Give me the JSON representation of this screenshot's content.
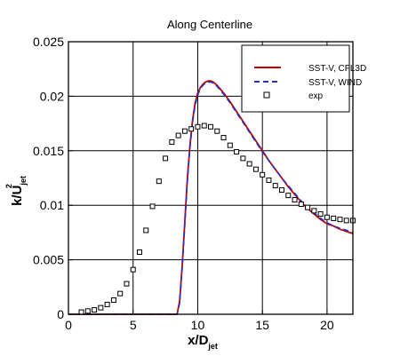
{
  "chart_data": {
    "type": "line",
    "title": "Along Centerline",
    "xlabel": {
      "main": "x/D",
      "sub": "jet"
    },
    "ylabel": {
      "main": "k/U",
      "sub": "jet",
      "sup": "2"
    },
    "xlim": [
      0,
      22
    ],
    "ylim": [
      0,
      0.025
    ],
    "xticks": [
      0,
      5,
      10,
      15,
      20
    ],
    "xtick_labels": [
      "0",
      "5",
      "10",
      "15",
      "20"
    ],
    "yticks": [
      0,
      0.005,
      0.01,
      0.015,
      0.02,
      0.025
    ],
    "ytick_labels": [
      "0",
      "0.005",
      "0.01",
      "0.015",
      "0.02",
      "0.025"
    ],
    "grid": true,
    "legend_position": "top-right",
    "series": [
      {
        "name": "SST-V, CFL3D",
        "color": "#c00000",
        "style": "solid",
        "x": [
          0,
          8.4,
          8.6,
          8.8,
          9.0,
          9.2,
          9.4,
          9.6,
          9.8,
          10.0,
          10.2,
          10.4,
          10.6,
          10.8,
          11.0,
          11.2,
          11.5,
          12,
          12.5,
          13,
          13.5,
          14,
          14.5,
          15,
          15.5,
          16,
          16.5,
          17,
          17.5,
          18,
          18.5,
          19,
          19.5,
          20,
          20.5,
          21,
          21.5,
          22
        ],
        "y": [
          0,
          0,
          0.0012,
          0.0045,
          0.0085,
          0.0125,
          0.0155,
          0.0178,
          0.0194,
          0.0203,
          0.0208,
          0.0211,
          0.0213,
          0.0214,
          0.0214,
          0.0213,
          0.021,
          0.0203,
          0.0195,
          0.0186,
          0.0177,
          0.0168,
          0.0159,
          0.015,
          0.0141,
          0.0133,
          0.0125,
          0.0117,
          0.011,
          0.0103,
          0.0097,
          0.0092,
          0.0087,
          0.0083,
          0.0081,
          0.0078,
          0.0076,
          0.0074
        ]
      },
      {
        "name": "SST-V, WIND",
        "color": "#2233cc",
        "style": "dashed",
        "x": [
          0,
          8.4,
          8.6,
          8.8,
          9.0,
          9.2,
          9.4,
          9.6,
          9.8,
          10.0,
          10.2,
          10.4,
          10.6,
          10.8,
          11.0,
          11.2,
          11.5,
          12,
          12.5,
          13,
          13.5,
          14,
          14.5,
          15,
          15.5,
          16,
          16.5,
          17,
          17.5,
          18,
          18.5,
          19,
          19.5,
          20,
          20.5,
          21,
          21.5,
          22
        ],
        "y": [
          0,
          0,
          0.001,
          0.0042,
          0.0082,
          0.0122,
          0.0153,
          0.0176,
          0.0192,
          0.0201,
          0.0207,
          0.021,
          0.0212,
          0.0213,
          0.0213,
          0.0212,
          0.0209,
          0.0202,
          0.0194,
          0.0185,
          0.0176,
          0.0167,
          0.0158,
          0.0149,
          0.0141,
          0.0133,
          0.0125,
          0.0118,
          0.0111,
          0.0104,
          0.0098,
          0.0093,
          0.0088,
          0.0084,
          0.0081,
          0.0079,
          0.0077,
          0.0075
        ]
      },
      {
        "name": "exp",
        "color": "#000000",
        "style": "markers",
        "marker": "square",
        "x": [
          1,
          1.5,
          2,
          2.5,
          3,
          3.5,
          4,
          4.5,
          5,
          5.5,
          6,
          6.5,
          7,
          7.5,
          8,
          8.5,
          9,
          9.5,
          10,
          10.5,
          11,
          11.5,
          12,
          12.5,
          13,
          13.5,
          14,
          14.5,
          15,
          15.5,
          16,
          16.5,
          17,
          17.5,
          18,
          18.5,
          19,
          19.5,
          20,
          20.5,
          21,
          21.5,
          22
        ],
        "y": [
          0.0002,
          0.0003,
          0.0004,
          0.0006,
          0.0009,
          0.0013,
          0.0019,
          0.0028,
          0.0041,
          0.0057,
          0.0077,
          0.0099,
          0.0122,
          0.0143,
          0.0158,
          0.0164,
          0.0168,
          0.017,
          0.0172,
          0.0173,
          0.0172,
          0.0168,
          0.0162,
          0.0155,
          0.0149,
          0.0143,
          0.0138,
          0.0133,
          0.0128,
          0.0123,
          0.0118,
          0.0114,
          0.0109,
          0.0105,
          0.0101,
          0.0098,
          0.0095,
          0.0092,
          0.0089,
          0.0088,
          0.0087,
          0.0086,
          0.0086
        ]
      }
    ]
  }
}
